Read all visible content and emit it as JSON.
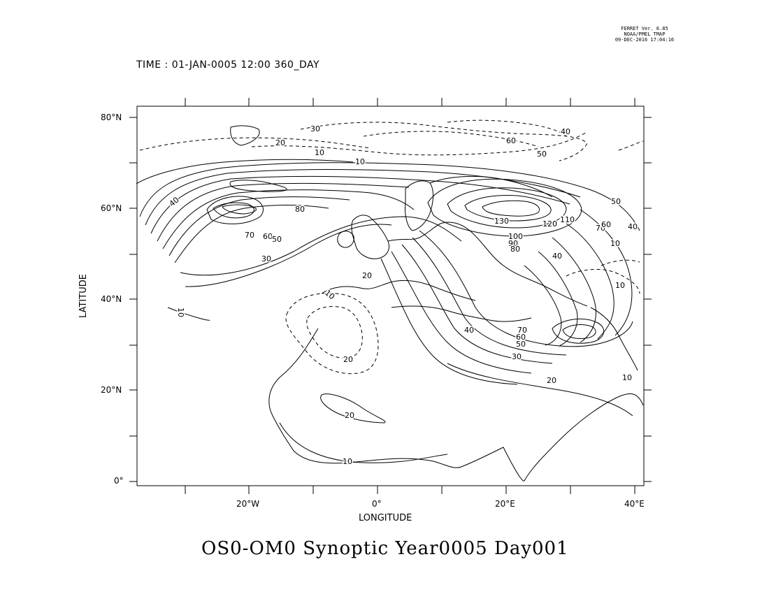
{
  "stamp": {
    "line1": "FERRET Ver. 6.85",
    "line2": "NOAA/PMEL TMAP",
    "line3": "09-DEC-2016 17:04:16"
  },
  "time_label": "TIME : 01-JAN-0005 12:00 360_DAY",
  "title": "OS0-OM0 Synoptic Year0005 Day001",
  "axes": {
    "xlabel": "LONGITUDE",
    "ylabel": "LATITUDE",
    "x_ticks": [
      "20°W",
      "0°",
      "20°E",
      "40°E"
    ],
    "y_ticks": [
      "80°N",
      "60°N",
      "40°N",
      "20°N",
      "0°"
    ]
  },
  "contour_labels": [
    "30",
    "40",
    "20",
    "60",
    "50",
    "10",
    "10",
    "40",
    "80",
    "70",
    "60",
    "50",
    "30",
    "130",
    "120",
    "110",
    "100",
    "90",
    "80",
    "70",
    "60",
    "50",
    "40",
    "20",
    "10",
    "10",
    "20",
    "10",
    "40",
    "30",
    "70",
    "60",
    "50",
    "20",
    "10",
    "20",
    "10",
    "40",
    "10"
  ],
  "colors": {
    "line": "#000000",
    "background": "#ffffff"
  }
}
